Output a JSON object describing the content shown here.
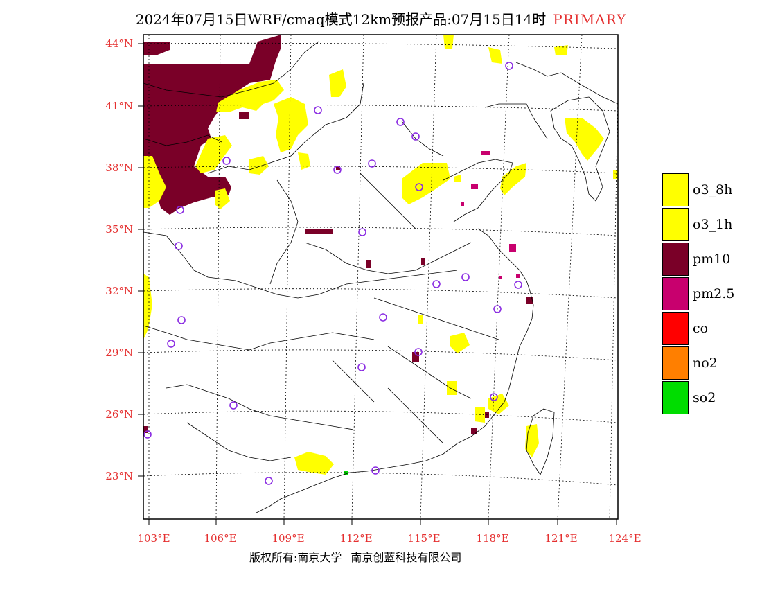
{
  "title": {
    "main": "2024年07月15日WRF/cmaq模式12km预报产品:07月15日14时",
    "tag": "PRIMARY"
  },
  "axes": {
    "lat_labels": [
      "44°N",
      "41°N",
      "38°N",
      "35°N",
      "32°N",
      "29°N",
      "26°N",
      "23°N"
    ],
    "lon_labels": [
      "103°E",
      "106°E",
      "109°E",
      "112°E",
      "115°E",
      "118°E",
      "121°E",
      "124°E"
    ]
  },
  "legend": [
    {
      "label": "o3_8h",
      "color": "#ffff00"
    },
    {
      "label": "o3_1h",
      "color": "#ffff00"
    },
    {
      "label": "pm10",
      "color": "#7a0028"
    },
    {
      "label": "pm2.5",
      "color": "#c8006e"
    },
    {
      "label": "co",
      "color": "#ff0000"
    },
    {
      "label": "no2",
      "color": "#ff7f00"
    },
    {
      "label": "so2",
      "color": "#00dd00"
    }
  ],
  "footer": {
    "left": "版权所有:南京大学",
    "right": "南京创蓝科技有限公司"
  },
  "colors": {
    "label_red": "#e53030",
    "station_marker": "#8a2be2",
    "pm10": "#7a0028",
    "o3": "#ffff00",
    "pm25": "#c8006e",
    "so2": "#00dd00"
  }
}
